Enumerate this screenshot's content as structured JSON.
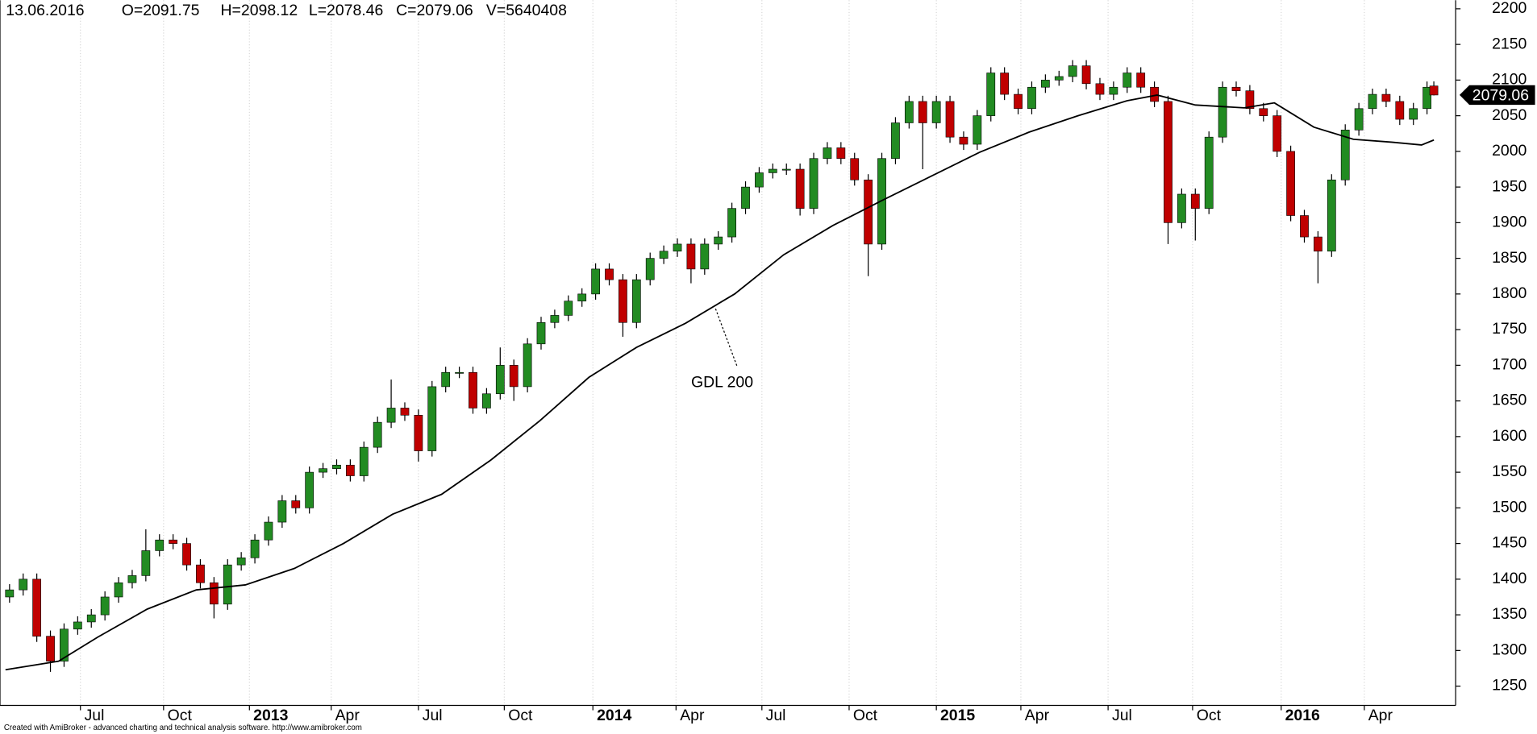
{
  "chart_data": {
    "type": "candlestick",
    "info": [
      "13.06.2016",
      "O=2091.75",
      "H=2098.12",
      "L=2078.46",
      "C=2079.06",
      "V=5640408"
    ],
    "x": [
      5,
      15,
      25,
      35,
      45,
      55,
      65,
      75,
      85,
      95,
      105,
      115,
      125,
      135,
      145,
      155,
      165,
      175,
      185,
      195,
      205,
      215,
      225,
      235,
      245,
      255,
      265,
      275,
      285,
      295,
      305,
      315,
      325,
      335,
      345,
      355,
      365,
      375,
      385,
      395,
      405,
      415,
      425,
      435,
      445,
      455,
      465,
      475,
      485,
      495,
      505,
      515,
      525,
      535,
      545,
      555,
      565,
      575,
      585,
      595,
      605,
      615,
      625,
      635,
      645,
      655,
      665,
      675,
      685,
      695,
      705,
      715,
      725,
      735,
      745,
      755,
      765,
      775,
      785,
      795,
      805,
      815,
      825,
      835,
      845,
      855,
      865,
      875,
      885,
      895,
      905,
      915,
      925,
      935,
      945,
      955,
      965,
      975,
      985,
      995,
      1005,
      1015,
      1025,
      1035,
      1045,
      1050
    ],
    "open": [
      1375,
      1385,
      1400,
      1320,
      1285,
      1330,
      1340,
      1350,
      1375,
      1395,
      1405,
      1440,
      1455,
      1450,
      1420,
      1395,
      1365,
      1420,
      1430,
      1455,
      1480,
      1510,
      1500,
      1550,
      1555,
      1560,
      1545,
      1585,
      1620,
      1640,
      1630,
      1580,
      1670,
      1690,
      1690,
      1640,
      1660,
      1700,
      1670,
      1730,
      1760,
      1770,
      1790,
      1800,
      1835,
      1820,
      1760,
      1820,
      1850,
      1860,
      1870,
      1835,
      1870,
      1880,
      1920,
      1950,
      1970,
      1975,
      1975,
      1920,
      1990,
      2005,
      1990,
      1960,
      1870,
      1990,
      2040,
      2070,
      2040,
      2070,
      2020,
      2010,
      2050,
      2110,
      2080,
      2060,
      2090,
      2100,
      2105,
      2120,
      2095,
      2080,
      2090,
      2110,
      2090,
      2070,
      1900,
      1940,
      1920,
      2020,
      2090,
      2085,
      2060,
      2050,
      2000,
      1910,
      1880,
      1860,
      1960,
      2030,
      2060,
      2080,
      2070,
      2045,
      2060,
      2091.75
    ],
    "high": [
      1393,
      1408,
      1408,
      1328,
      1338,
      1348,
      1358,
      1383,
      1403,
      1413,
      1470,
      1463,
      1463,
      1458,
      1428,
      1403,
      1428,
      1438,
      1463,
      1488,
      1518,
      1518,
      1558,
      1563,
      1568,
      1568,
      1593,
      1628,
      1680,
      1648,
      1638,
      1678,
      1698,
      1698,
      1698,
      1668,
      1725,
      1708,
      1738,
      1768,
      1778,
      1798,
      1808,
      1843,
      1843,
      1828,
      1828,
      1858,
      1868,
      1878,
      1878,
      1878,
      1888,
      1928,
      1958,
      1978,
      1983,
      1983,
      1983,
      1998,
      2013,
      2013,
      1998,
      1968,
      1998,
      2048,
      2078,
      2078,
      2078,
      2078,
      2028,
      2058,
      2118,
      2118,
      2088,
      2098,
      2108,
      2113,
      2128,
      2128,
      2103,
      2098,
      2118,
      2118,
      2098,
      2078,
      1948,
      1948,
      2028,
      2098,
      2098,
      2093,
      2068,
      2058,
      2008,
      1918,
      1888,
      1968,
      2038,
      2068,
      2088,
      2088,
      2078,
      2068,
      2098,
      2098.12
    ],
    "low": [
      1367,
      1377,
      1312,
      1270,
      1277,
      1322,
      1332,
      1342,
      1367,
      1387,
      1397,
      1432,
      1442,
      1412,
      1387,
      1345,
      1357,
      1412,
      1422,
      1447,
      1472,
      1492,
      1492,
      1542,
      1547,
      1537,
      1537,
      1577,
      1612,
      1622,
      1565,
      1572,
      1662,
      1682,
      1632,
      1632,
      1652,
      1650,
      1662,
      1722,
      1752,
      1762,
      1782,
      1792,
      1812,
      1740,
      1752,
      1812,
      1842,
      1852,
      1815,
      1827,
      1862,
      1872,
      1912,
      1942,
      1962,
      1967,
      1910,
      1912,
      1982,
      1982,
      1952,
      1825,
      1862,
      1982,
      2032,
      1975,
      2032,
      2012,
      2002,
      2002,
      2042,
      2072,
      2052,
      2052,
      2082,
      2092,
      2097,
      2087,
      2072,
      2072,
      2082,
      2082,
      2062,
      1870,
      1892,
      1875,
      1912,
      2012,
      2077,
      2052,
      2042,
      1992,
      1902,
      1872,
      1815,
      1852,
      1952,
      2022,
      2052,
      2062,
      2037,
      2037,
      2052,
      2078.46
    ],
    "close": [
      1385,
      1400,
      1320,
      1285,
      1330,
      1340,
      1350,
      1375,
      1395,
      1405,
      1440,
      1455,
      1450,
      1420,
      1395,
      1365,
      1420,
      1430,
      1455,
      1480,
      1510,
      1500,
      1550,
      1555,
      1560,
      1545,
      1585,
      1620,
      1640,
      1630,
      1580,
      1670,
      1690,
      1690,
      1640,
      1660,
      1700,
      1670,
      1730,
      1760,
      1770,
      1790,
      1800,
      1835,
      1820,
      1760,
      1820,
      1850,
      1860,
      1870,
      1835,
      1870,
      1880,
      1920,
      1950,
      1970,
      1975,
      1975,
      1920,
      1990,
      2005,
      1990,
      1960,
      1870,
      1990,
      2040,
      2070,
      2040,
      2070,
      2020,
      2010,
      2050,
      2110,
      2080,
      2060,
      2090,
      2100,
      2105,
      2120,
      2095,
      2080,
      2090,
      2110,
      2090,
      2070,
      1900,
      1940,
      1920,
      2020,
      2090,
      2085,
      2060,
      2050,
      2000,
      1910,
      1880,
      1860,
      1960,
      2030,
      2060,
      2080,
      2070,
      2045,
      2060,
      2090,
      2079.06
    ],
    "up_color": "#228b22",
    "down_color": "#c00000",
    "ma": {
      "name": "GDL 200",
      "color": "#000000",
      "x": [
        2,
        41,
        70,
        106,
        142,
        178,
        214,
        250,
        286,
        322,
        358,
        394,
        430,
        465,
        501,
        537,
        573,
        609,
        645,
        681,
        717,
        753,
        789,
        825,
        847,
        875,
        911,
        933,
        962,
        991,
        1019,
        1041,
        1050
      ],
      "values": [
        1273,
        1285,
        1319,
        1358,
        1385,
        1392,
        1415,
        1450,
        1491,
        1519,
        1567,
        1622,
        1683,
        1725,
        1759,
        1800,
        1855,
        1896,
        1931,
        1965,
        1999,
        2027,
        2050,
        2071,
        2079,
        2065,
        2061,
        2068,
        2034,
        2017,
        2013,
        2009,
        2016
      ]
    },
    "last_label": "2079.06",
    "xlim": [
      -2,
      1066
    ],
    "xticks": [
      {
        "value": 57,
        "label": "Jul"
      },
      {
        "value": 118,
        "label": "Oct"
      },
      {
        "value": 181,
        "label": "2013"
      },
      {
        "value": 241,
        "label": "Apr"
      },
      {
        "value": 305,
        "label": "Jul"
      },
      {
        "value": 368,
        "label": "Oct"
      },
      {
        "value": 433,
        "label": "2014"
      },
      {
        "value": 494,
        "label": "Apr"
      },
      {
        "value": 557,
        "label": "Jul"
      },
      {
        "value": 621,
        "label": "Oct"
      },
      {
        "value": 685,
        "label": "2015"
      },
      {
        "value": 747,
        "label": "Apr"
      },
      {
        "value": 811,
        "label": "Jul"
      },
      {
        "value": 873,
        "label": "Oct"
      },
      {
        "value": 938,
        "label": "2016"
      },
      {
        "value": 999,
        "label": "Apr"
      }
    ],
    "ylim": [
      1223,
      2212
    ],
    "yticks": [
      1250,
      1300,
      1350,
      1400,
      1450,
      1500,
      1550,
      1600,
      1650,
      1700,
      1750,
      1800,
      1850,
      1900,
      1950,
      2000,
      2050,
      2100,
      2150,
      2200
    ],
    "grid": true,
    "footer": "Created with AmiBroker - advanced charting and technical analysis software. http://www.amibroker.com"
  }
}
